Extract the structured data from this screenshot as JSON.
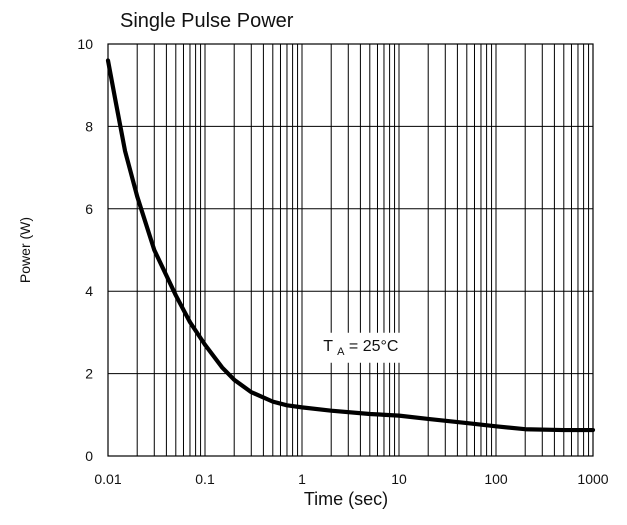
{
  "chart_data": {
    "type": "line",
    "title": "Single Pulse Power",
    "xlabel": "Time (sec)",
    "ylabel": "Power (W)",
    "x_scale": "log",
    "xlim": [
      0.01,
      1000
    ],
    "ylim": [
      0,
      10
    ],
    "grid": true,
    "x_ticks": [
      0.01,
      0.1,
      1,
      10,
      100,
      1000
    ],
    "x_tick_labels": [
      "0.01",
      "0.1",
      "1",
      "10",
      "100",
      "1000"
    ],
    "y_ticks": [
      0,
      2,
      4,
      6,
      8,
      10
    ],
    "y_tick_labels": [
      "0",
      "2",
      "4",
      "6",
      "8",
      "10"
    ],
    "annotation": {
      "text_main": "T",
      "text_sub": "A",
      "text_rest": " = 25°C",
      "x": 2.0,
      "y": 2.7
    },
    "series": [
      {
        "x": [
          0.01,
          0.012,
          0.015,
          0.02,
          0.03,
          0.05,
          0.07,
          0.1,
          0.15,
          0.2,
          0.3,
          0.5,
          0.7,
          1,
          2,
          5,
          10,
          20,
          50,
          100,
          200,
          500,
          1000
        ],
        "y": [
          9.6,
          8.6,
          7.4,
          6.3,
          5.0,
          3.9,
          3.25,
          2.7,
          2.15,
          1.85,
          1.55,
          1.32,
          1.23,
          1.18,
          1.1,
          1.02,
          0.98,
          0.9,
          0.8,
          0.72,
          0.65,
          0.63,
          0.63
        ],
        "color": "#000000"
      }
    ]
  }
}
